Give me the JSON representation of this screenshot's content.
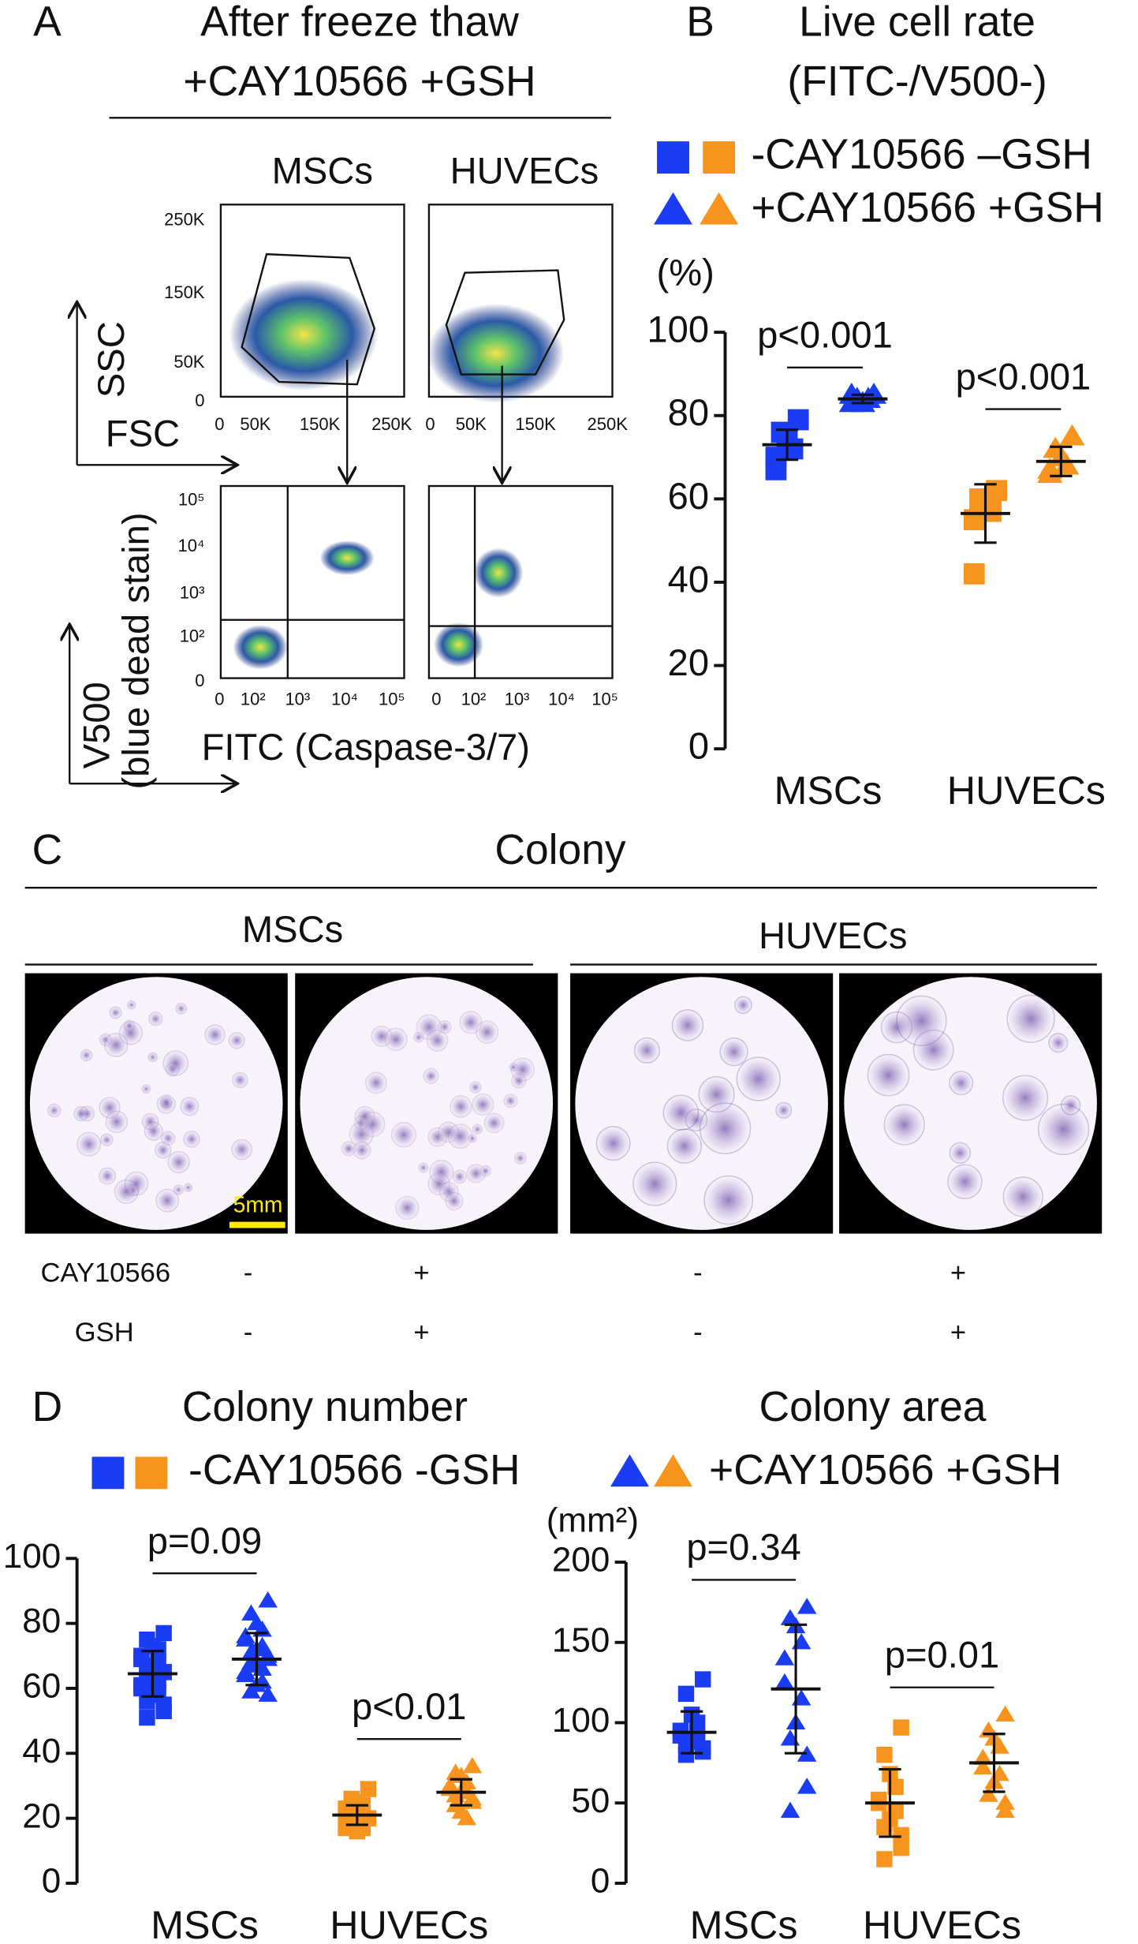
{
  "panel_a": {
    "letter": "A",
    "title": "After freeze thaw",
    "subtitle": "+CAY10566 +GSH",
    "col_labels": [
      "MSCs",
      "HUVECs"
    ],
    "scatter_y_ticks": [
      "250K",
      "150K",
      "50K",
      "0"
    ],
    "scatter_x_ticks": [
      [
        "0",
        "50K",
        "150K",
        "250K"
      ],
      [
        "0",
        "50K",
        "150K",
        "250K"
      ]
    ],
    "y_axis_1": "SSC",
    "x_axis_1": "FSC",
    "log_y_ticks": [
      "10⁵",
      "10⁴",
      "10³",
      "10²",
      "0"
    ],
    "log_x_ticks": [
      [
        "0",
        "10²",
        "10³",
        "10⁴",
        "10⁵"
      ],
      [
        "0",
        "10²",
        "10³",
        "10⁴",
        "10⁵"
      ]
    ],
    "y_axis_2": "V500",
    "y_axis_2_sub": "(blue dead stain)",
    "x_axis_2": "FITC (Caspase-3/7)"
  },
  "panel_b": {
    "letter": "B"
  },
  "panel_c": {
    "letter": "C",
    "title": "Colony",
    "groups": [
      "MSCs",
      "HUVECs"
    ],
    "scale_bar": "5mm",
    "rows": [
      [
        "CAY10566",
        "-",
        "+",
        "-",
        "+"
      ],
      [
        "GSH",
        "-",
        "+",
        "-",
        "+"
      ]
    ]
  },
  "panel_d": {
    "letter": "D"
  },
  "chart_data": [
    {
      "type": "dot",
      "title": "Live cell rate",
      "subtitle": "(FITC-/V500-)",
      "y_label": "(%)",
      "categories": [
        "MSCs",
        "HUVECs"
      ],
      "ylim": [
        0,
        100
      ],
      "yticks": [
        0,
        20,
        40,
        60,
        80,
        100
      ],
      "p_values": [
        "p<0.001",
        "p<0.001"
      ],
      "series": [
        {
          "name": "-CAY10566 –GSH",
          "marker": "square",
          "colors": [
            "#1a3cf2",
            "#f7941d"
          ],
          "values": [
            [
              79,
              76,
              74,
              72,
              70,
              67
            ],
            [
              62,
              60,
              58,
              57,
              55,
              42
            ]
          ],
          "mean": [
            73,
            56.5
          ],
          "sd": [
            3.6,
            7
          ]
        },
        {
          "name": "+CAY10566 +GSH",
          "marker": "triangle",
          "colors": [
            "#1a3cf2",
            "#f7941d"
          ],
          "values": [
            [
              85,
              84,
              83,
              84,
              85,
              83
            ],
            [
              75,
              72,
              70,
              68,
              66,
              67
            ]
          ],
          "mean": [
            84,
            69
          ],
          "sd": [
            1,
            3.5
          ]
        }
      ]
    },
    {
      "type": "dot",
      "title": "Colony number",
      "categories": [
        "MSCs",
        "HUVECs"
      ],
      "ylim": [
        0,
        100
      ],
      "yticks": [
        0,
        20,
        40,
        60,
        80,
        100
      ],
      "p_values": [
        "p=0.09",
        "p<0.01"
      ],
      "series": [
        {
          "name": "-CAY10566 -GSH",
          "marker": "square",
          "colors": [
            "#1a3cf2",
            "#f7941d"
          ],
          "values": [
            [
              77,
              75,
              73,
              72,
              70,
              69,
              68,
              67,
              66,
              65,
              65,
              64,
              63,
              62,
              61,
              60,
              59,
              58,
              56,
              55,
              53,
              51
            ],
            [
              29,
              26,
              25,
              24,
              23,
              22,
              22,
              21,
              21,
              20,
              20,
              19,
              19,
              18,
              18,
              17,
              17,
              16
            ]
          ],
          "mean": [
            64.5,
            21
          ],
          "sd": [
            7,
            3
          ]
        },
        {
          "name": "+CAY10566 +GSH",
          "marker": "triangle",
          "colors": [
            "#1a3cf2",
            "#f7941d"
          ],
          "values": [
            [
              87,
              83,
              80,
              78,
              76,
              75,
              73,
              72,
              71,
              70,
              69,
              68,
              67,
              66,
              65,
              64,
              62,
              61,
              59,
              58
            ],
            [
              36,
              34,
              33,
              31,
              30,
              29,
              28,
              28,
              27,
              26,
              25,
              24,
              22,
              20
            ]
          ],
          "mean": [
            69,
            28
          ],
          "sd": [
            8,
            4
          ]
        }
      ]
    },
    {
      "type": "dot",
      "title": "Colony area",
      "y_label": "(mm²)",
      "categories": [
        "MSCs",
        "HUVECs"
      ],
      "ylim": [
        0,
        200
      ],
      "yticks": [
        0,
        50,
        100,
        150,
        200
      ],
      "p_values": [
        "p=0.34",
        "p=0.01"
      ],
      "series": [
        {
          "marker": "square",
          "colors": [
            "#1a3cf2",
            "#f7941d"
          ],
          "values": [
            [
              127,
              118,
              105,
              100,
              95,
              92,
              90,
              88,
              86,
              84,
              82,
              80
            ],
            [
              97,
              80,
              68,
              60,
              52,
              50,
              45,
              40,
              35,
              30,
              22,
              15
            ]
          ],
          "mean": [
            94,
            50
          ],
          "sd": [
            13,
            21
          ]
        },
        {
          "marker": "triangle",
          "colors": [
            "#1a3cf2",
            "#f7941d"
          ],
          "values": [
            [
              172,
              165,
              160,
              150,
              140,
              125,
              115,
              100,
              90,
              80,
              60,
              45
            ],
            [
              105,
              95,
              90,
              85,
              78,
              72,
              68,
              63,
              55,
              50,
              45
            ]
          ],
          "mean": [
            121,
            75
          ],
          "sd": [
            40,
            18
          ]
        }
      ]
    }
  ]
}
